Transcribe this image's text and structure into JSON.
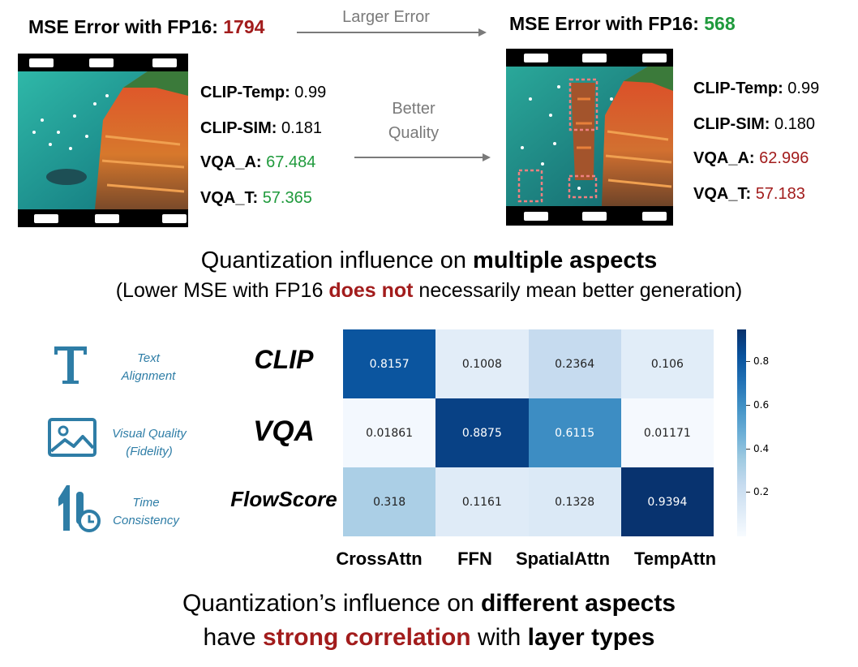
{
  "top": {
    "left": {
      "title_prefix": "MSE Error with FP16: ",
      "title_value": "1794",
      "metrics": [
        {
          "label": "CLIP-Temp:",
          "value": "0.99"
        },
        {
          "label": "CLIP-SIM:",
          "value": "0.181"
        },
        {
          "label": "VQA_A:",
          "value": "67.484"
        },
        {
          "label": "VQA_T:",
          "value": "57.365"
        }
      ]
    },
    "right": {
      "title_prefix": "MSE Error with FP16: ",
      "title_value": "568",
      "metrics": [
        {
          "label": "CLIP-Temp:",
          "value": "0.99"
        },
        {
          "label": "CLIP-SIM:",
          "value": "0.180"
        },
        {
          "label": "VQA_A:",
          "value": "62.996"
        },
        {
          "label": "VQA_T:",
          "value": "57.183"
        }
      ]
    },
    "arrow_top_label": "Larger Error",
    "arrow_mid_label_1": "Better",
    "arrow_mid_label_2": "Quality"
  },
  "middle": {
    "title_prefix": "Quantization influence on ",
    "title_bold": "multiple aspects",
    "sub_prefix": "(Lower MSE with FP16 ",
    "sub_red": "does not",
    "sub_suffix": " necessarily mean better generation)"
  },
  "aspects": [
    {
      "icon": "text-T-icon",
      "label_1": "Text",
      "label_2": "Alignment",
      "metric": "CLIP"
    },
    {
      "icon": "image-icon",
      "label_1": "Visual Quality",
      "label_2": "(Fidelity)",
      "metric": "VQA"
    },
    {
      "icon": "time-icon",
      "label_1": "Time",
      "label_2": "Consistency",
      "metric": "FlowScore"
    }
  ],
  "chart_data": {
    "type": "heatmap",
    "rows": [
      "CLIP",
      "VQA",
      "FlowScore"
    ],
    "columns": [
      "CrossAttn",
      "FFN",
      "SpatialAttn",
      "TempAttn"
    ],
    "values": [
      [
        0.8157,
        0.1008,
        0.2364,
        0.106
      ],
      [
        0.01861,
        0.8875,
        0.6115,
        0.01171
      ],
      [
        0.318,
        0.1161,
        0.1328,
        0.9394
      ]
    ],
    "value_labels": [
      [
        "0.8157",
        "0.1008",
        "0.2364",
        "0.106"
      ],
      [
        "0.01861",
        "0.8875",
        "0.6115",
        "0.01171"
      ],
      [
        "0.318",
        "0.1161",
        "0.1328",
        "0.9394"
      ]
    ],
    "colormap": "Blues",
    "colorbar_range": [
      0,
      0.95
    ],
    "colorbar_ticks": [
      "0.2",
      "0.4",
      "0.6",
      "0.8"
    ]
  },
  "bottom": {
    "line1_prefix": "Quantization’s influence on ",
    "line1_bold": "different aspects",
    "line2_prefix": "have ",
    "line2_red": "strong correlation",
    "line2_mid": " with ",
    "line2_bold": "layer types"
  },
  "colors": {
    "red": "#a21c1c",
    "green": "#1f9a3c",
    "icon_blue": "#2e7da6",
    "arrow_gray": "#7a7a7a"
  }
}
